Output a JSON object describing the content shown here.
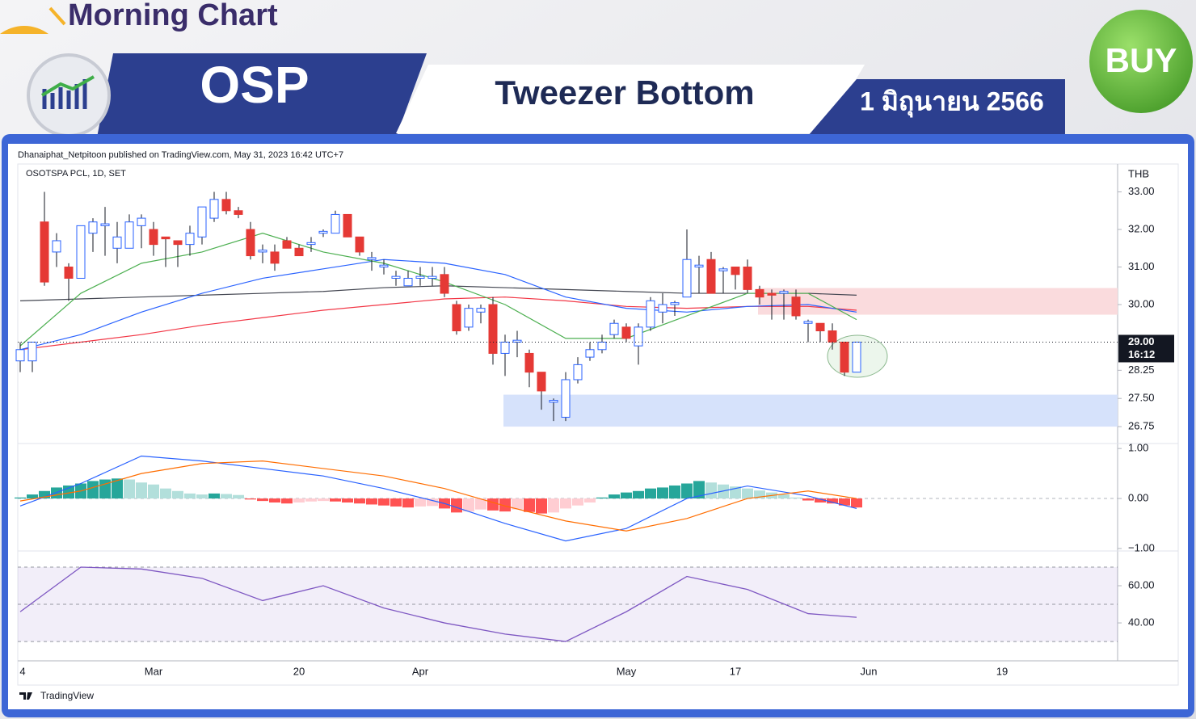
{
  "header": {
    "brand": "Morning Chart",
    "symbol": "OSP",
    "pattern": "Tweezer Bottom",
    "date": "1 มิถุนายน 2566",
    "signal": "BUY"
  },
  "published": "Dhanaiphat_Netpitoon published on TradingView.com, May 31, 2023 16:42 UTC+7",
  "footer": "TradingView",
  "x_labels": [
    "4",
    "Mar",
    "20",
    "Apr",
    "May",
    "17",
    "Jun",
    "19"
  ],
  "chart_data": [
    {
      "type": "candlestick",
      "title": "OSOTSPA PCL, 1D, SET",
      "y_unit": "THB",
      "ylim": [
        26.3,
        33.7
      ],
      "yticks": [
        {
          "value": 33,
          "label": "33.00"
        },
        {
          "value": 32,
          "label": "32.00"
        },
        {
          "value": 31,
          "label": "31.00"
        },
        {
          "value": 30,
          "label": "30.00"
        },
        {
          "value": 28.25,
          "label": "28.25"
        },
        {
          "value": 27.5,
          "label": "27.50"
        },
        {
          "value": 26.75,
          "label": "26.75"
        }
      ],
      "up_color": "#2962ff",
      "down_color": "#e53935",
      "ohlc": [
        [
          28.5,
          29,
          28.2,
          28.8
        ],
        [
          28.5,
          29,
          28.2,
          29
        ],
        [
          32.2,
          33,
          30.5,
          30.6
        ],
        [
          31.4,
          31.9,
          31,
          31.7
        ],
        [
          31,
          31.1,
          30.1,
          30.7
        ],
        [
          30.7,
          32.1,
          30.7,
          32.1
        ],
        [
          31.9,
          32.3,
          31.4,
          32.2
        ],
        [
          32.1,
          32.6,
          31.3,
          32.15
        ],
        [
          31.5,
          32.2,
          31.1,
          31.8
        ],
        [
          31.5,
          32.4,
          31.5,
          32.2
        ],
        [
          32.1,
          32.4,
          31.5,
          32.3
        ],
        [
          32,
          32.2,
          31.3,
          31.6
        ],
        [
          31.8,
          31.8,
          31,
          31.75
        ],
        [
          31.7,
          31.7,
          31,
          31.6
        ],
        [
          31.6,
          32.1,
          31.3,
          31.9
        ],
        [
          31.8,
          32.6,
          31.6,
          32.6
        ],
        [
          32.3,
          33,
          32.2,
          32.8
        ],
        [
          32.8,
          33,
          32.4,
          32.5
        ],
        [
          32.5,
          32.6,
          32.3,
          32.4
        ],
        [
          32,
          32.2,
          31.2,
          31.3
        ],
        [
          31.4,
          31.6,
          31.1,
          31.45
        ],
        [
          31.4,
          31.6,
          30.9,
          31.1
        ],
        [
          31.7,
          31.8,
          31.5,
          31.5
        ],
        [
          31.5,
          31.6,
          31.3,
          31.3
        ],
        [
          31.6,
          31.8,
          31.4,
          31.65
        ],
        [
          31.9,
          32,
          31.8,
          31.95
        ],
        [
          31.9,
          32.5,
          31.9,
          32.4
        ],
        [
          32.4,
          32.4,
          31.8,
          31.8
        ],
        [
          31.8,
          31.8,
          31.3,
          31.4
        ],
        [
          31.2,
          31.4,
          30.9,
          31.25
        ],
        [
          31,
          31.2,
          30.8,
          31.05
        ],
        [
          30.7,
          30.9,
          30.5,
          30.75
        ],
        [
          30.5,
          30.9,
          30.5,
          30.7
        ],
        [
          30.7,
          31,
          30.5,
          30.75
        ],
        [
          30.7,
          31,
          30.5,
          30.75
        ],
        [
          30.8,
          31,
          30.2,
          30.3
        ],
        [
          30,
          30.1,
          29.2,
          29.3
        ],
        [
          29.4,
          30,
          29.3,
          29.9
        ],
        [
          29.8,
          30,
          29.5,
          29.9
        ],
        [
          30,
          30.2,
          28.4,
          28.7
        ],
        [
          28.7,
          29.2,
          28.1,
          29
        ],
        [
          29,
          29.3,
          28.6,
          29.05
        ],
        [
          28.7,
          28.8,
          27.8,
          28.2
        ],
        [
          28.2,
          28.2,
          27.2,
          27.7
        ],
        [
          27.4,
          27.5,
          26.9,
          27.45
        ],
        [
          27,
          28.2,
          26.9,
          28
        ],
        [
          28,
          28.6,
          27.9,
          28.4
        ],
        [
          28.6,
          29,
          28.5,
          28.8
        ],
        [
          28.8,
          29.2,
          28.7,
          29
        ],
        [
          29.2,
          29.6,
          29.1,
          29.5
        ],
        [
          29.4,
          29.5,
          29,
          29.1
        ],
        [
          28.9,
          29.5,
          28.4,
          29.4
        ],
        [
          29.4,
          30.2,
          29.3,
          30.1
        ],
        [
          29.8,
          30.3,
          29.5,
          30
        ],
        [
          30,
          30.1,
          29.7,
          30.05
        ],
        [
          30.2,
          32,
          30.2,
          31.2
        ],
        [
          31,
          31.3,
          30.3,
          31.05
        ],
        [
          31.2,
          31.4,
          30.3,
          30.3
        ],
        [
          30.9,
          31,
          30.3,
          30.95
        ],
        [
          31,
          31,
          30.4,
          30.8
        ],
        [
          31,
          31.2,
          30.3,
          30.4
        ],
        [
          30.4,
          30.5,
          30,
          30.2
        ],
        [
          30.3,
          30.4,
          29.6,
          30.25
        ],
        [
          30.3,
          30.4,
          29.6,
          30.35
        ],
        [
          30.2,
          30.4,
          29.6,
          29.7
        ],
        [
          29.5,
          29.6,
          29,
          29.55
        ],
        [
          29.5,
          29.5,
          29,
          29.3
        ],
        [
          29.3,
          29.5,
          28.8,
          29
        ],
        [
          29,
          29,
          28.1,
          28.2
        ],
        [
          28.2,
          29,
          28.2,
          29
        ]
      ],
      "lines": [
        {
          "color": "#434651",
          "x": [
            0,
            5,
            10,
            15,
            20,
            25,
            30,
            35,
            40,
            45,
            50,
            55,
            60,
            65,
            69
          ],
          "values": [
            30.1,
            30.15,
            30.2,
            30.25,
            30.3,
            30.35,
            30.45,
            30.5,
            30.45,
            30.4,
            30.35,
            30.3,
            30.3,
            30.3,
            30.25
          ]
        },
        {
          "color": "#f23645",
          "x": [
            0,
            5,
            10,
            15,
            20,
            25,
            30,
            35,
            40,
            45,
            50,
            55,
            60,
            65,
            69
          ],
          "values": [
            28.8,
            29,
            29.2,
            29.45,
            29.65,
            29.85,
            30,
            30.15,
            30.2,
            30.1,
            29.95,
            29.9,
            29.95,
            29.95,
            29.85
          ]
        },
        {
          "color": "#2962ff",
          "x": [
            0,
            5,
            10,
            15,
            20,
            25,
            30,
            35,
            40,
            45,
            50,
            55,
            60,
            65,
            69
          ],
          "values": [
            28.8,
            29.2,
            29.8,
            30.3,
            30.7,
            30.95,
            31.2,
            31.1,
            30.8,
            30.2,
            29.9,
            29.8,
            29.95,
            30,
            29.8
          ]
        },
        {
          "color": "#4caf50",
          "x": [
            0,
            5,
            10,
            15,
            20,
            25,
            30,
            35,
            40,
            45,
            50,
            55,
            60,
            65,
            69
          ],
          "values": [
            28.9,
            30.3,
            31.1,
            31.4,
            31.9,
            31.4,
            31.1,
            30.6,
            30,
            29.1,
            29.1,
            29.7,
            30.3,
            30.3,
            29.6
          ]
        }
      ],
      "zones": [
        {
          "start": 40,
          "low": 26.75,
          "high": 27.6,
          "color": "#d6e2fb"
        },
        {
          "start": 61,
          "low": 29.73,
          "high": 30.44,
          "color": "#fadbdd"
        }
      ],
      "last_price": {
        "value": 29,
        "label": "29.00",
        "countdown": "16:12"
      }
    },
    {
      "type": "macd",
      "ylim": [
        -1.05,
        1.1
      ],
      "yticks": [
        {
          "value": 1,
          "label": "1.00"
        },
        {
          "value": 0,
          "label": "0.00"
        },
        {
          "value": -1,
          "label": "−1.00"
        }
      ],
      "histogram": [
        0.02,
        0.08,
        0.15,
        0.22,
        0.26,
        0.3,
        0.35,
        0.38,
        0.4,
        0.38,
        0.32,
        0.28,
        0.2,
        0.15,
        0.1,
        0.08,
        0.1,
        0.09,
        0.07,
        -0.02,
        -0.05,
        -0.08,
        -0.1,
        -0.08,
        -0.06,
        -0.05,
        -0.06,
        -0.08,
        -0.1,
        -0.12,
        -0.14,
        -0.16,
        -0.18,
        -0.16,
        -0.15,
        -0.2,
        -0.28,
        -0.26,
        -0.22,
        -0.24,
        -0.26,
        -0.22,
        -0.27,
        -0.3,
        -0.28,
        -0.2,
        -0.14,
        -0.08,
        0.02,
        0.08,
        0.12,
        0.15,
        0.2,
        0.22,
        0.26,
        0.3,
        0.35,
        0.32,
        0.28,
        0.24,
        0.2,
        0.16,
        0.12,
        0.08,
        0.02,
        -0.04,
        -0.08,
        -0.1,
        -0.14,
        -0.18
      ],
      "lines": [
        {
          "color": "#2962ff",
          "x": [
            0,
            5,
            10,
            15,
            20,
            25,
            30,
            35,
            40,
            45,
            50,
            55,
            60,
            65,
            69
          ],
          "values": [
            -0.15,
            0.3,
            0.85,
            0.75,
            0.6,
            0.45,
            0.2,
            -0.1,
            -0.5,
            -0.85,
            -0.6,
            0,
            0.25,
            0.05,
            -0.2
          ]
        },
        {
          "color": "#ff6d00",
          "x": [
            0,
            5,
            10,
            15,
            20,
            25,
            30,
            35,
            40,
            45,
            50,
            55,
            60,
            65,
            69
          ],
          "values": [
            -0.05,
            0.15,
            0.5,
            0.7,
            0.75,
            0.6,
            0.45,
            0.2,
            -0.15,
            -0.45,
            -0.65,
            -0.4,
            0,
            0.15,
            0
          ]
        }
      ]
    },
    {
      "type": "rsi",
      "ylim": [
        19.6,
        78.7
      ],
      "yticks": [
        {
          "value": 60,
          "label": "60.00"
        },
        {
          "value": 40,
          "label": "40.00"
        }
      ],
      "bands": [
        70,
        50,
        30
      ],
      "lines": [
        {
          "color": "#7e57c2",
          "x": [
            0,
            5,
            10,
            15,
            20,
            25,
            30,
            35,
            40,
            45,
            50,
            55,
            60,
            65,
            69
          ],
          "values": [
            46,
            70,
            69,
            64,
            52,
            60,
            48,
            40,
            34,
            30,
            46,
            65,
            58,
            45,
            43
          ]
        }
      ]
    }
  ]
}
